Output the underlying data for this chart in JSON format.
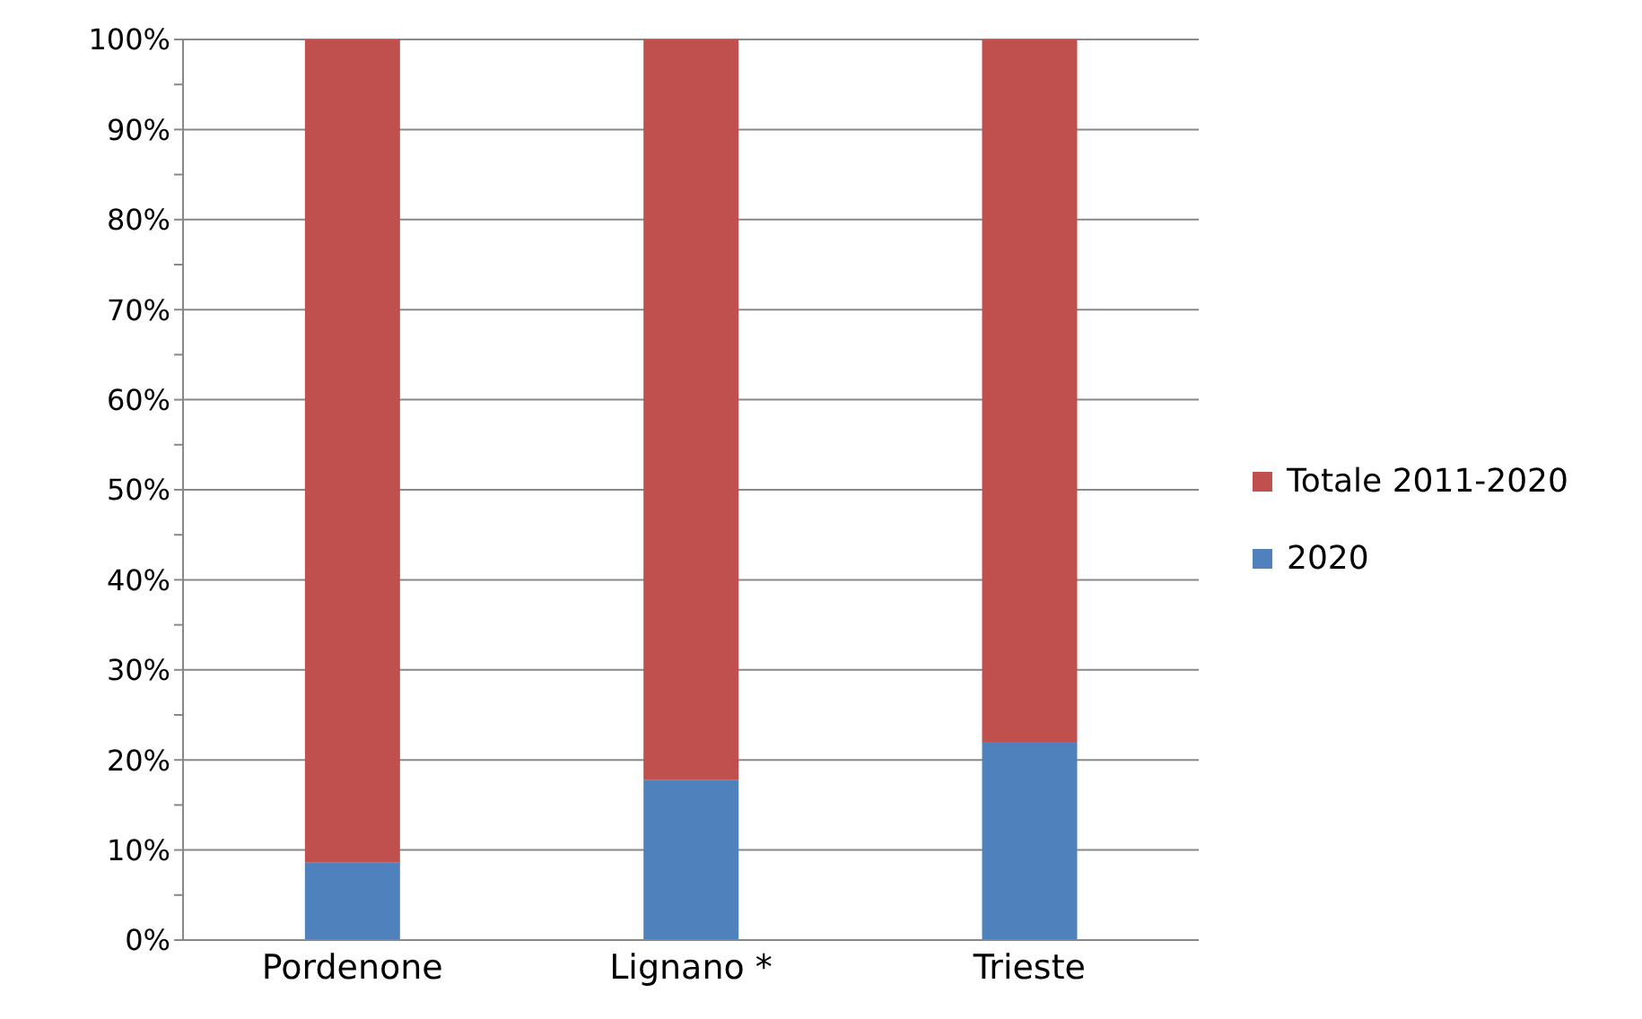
{
  "chart_data": {
    "type": "bar",
    "stacked": true,
    "categories": [
      "Pordenone",
      "Lignano *",
      "Trieste"
    ],
    "series": [
      {
        "name": "2020",
        "color": "#4f81bd",
        "values": [
          8.6,
          17.8,
          22
        ]
      },
      {
        "name": "Totale 2011-2020",
        "color": "#c0504d",
        "values": [
          91.4,
          82.2,
          78
        ]
      }
    ],
    "ylim": [
      0,
      100
    ],
    "yticks": [
      {
        "value": 0,
        "label": "0%"
      },
      {
        "value": 5,
        "label": null
      },
      {
        "value": 10,
        "label": "10%"
      },
      {
        "value": 15,
        "label": null
      },
      {
        "value": 20,
        "label": "20%"
      },
      {
        "value": 25,
        "label": null
      },
      {
        "value": 30,
        "label": "30%"
      },
      {
        "value": 35,
        "label": null
      },
      {
        "value": 40,
        "label": "40%"
      },
      {
        "value": 45,
        "label": null
      },
      {
        "value": 50,
        "label": "50%"
      },
      {
        "value": 55,
        "label": null
      },
      {
        "value": 60,
        "label": "60%"
      },
      {
        "value": 65,
        "label": null
      },
      {
        "value": 70,
        "label": "70%"
      },
      {
        "value": 75,
        "label": null
      },
      {
        "value": 80,
        "label": "80%"
      },
      {
        "value": 85,
        "label": null
      },
      {
        "value": 90,
        "label": "90%"
      },
      {
        "value": 95,
        "label": null
      },
      {
        "value": 100,
        "label": "100%"
      }
    ],
    "grid": "y",
    "legend": "right"
  }
}
